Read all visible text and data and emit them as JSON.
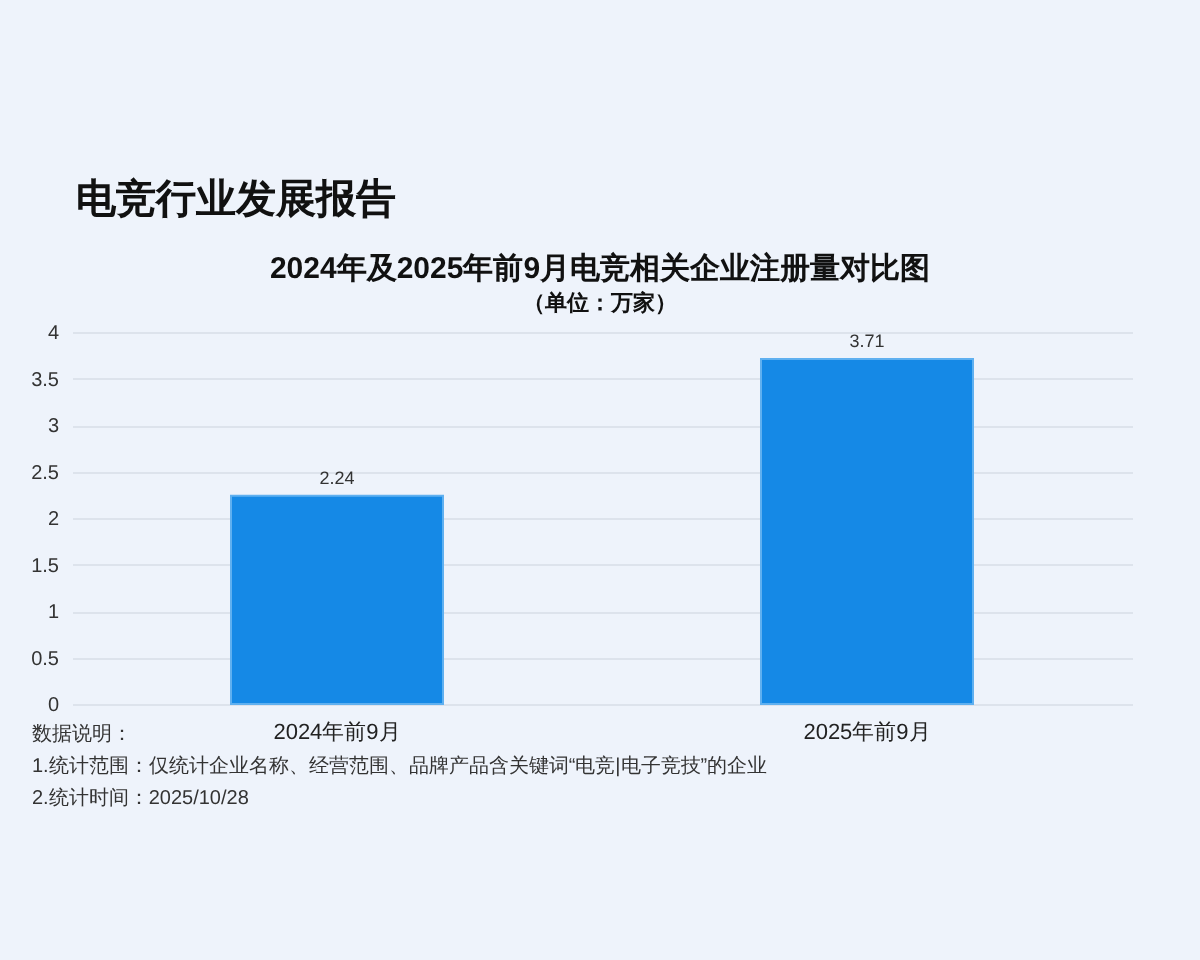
{
  "chart_data": {
    "type": "bar",
    "title": "2024年及2025年前9月电竞相关企业注册量对比图",
    "subtitle": "（单位：万家）",
    "annotations": [
      "电竞行业发展报告",
      "数据说明：",
      "1.统计范围：仅统计企业名称、经营范围、品牌产品含关键词“电竞|电子竞技”的企业",
      "2.统计时间：2025/10/28"
    ],
    "categories": [
      "2024年前9月",
      "2025年前9月"
    ],
    "values": [
      2.24,
      3.71
    ],
    "color": "#1589e6",
    "ylim": [
      0,
      4
    ],
    "yticks": [
      0,
      0.5,
      1,
      1.5,
      2,
      2.5,
      3,
      3.5,
      4
    ],
    "grid": "y",
    "data_labels": true
  }
}
